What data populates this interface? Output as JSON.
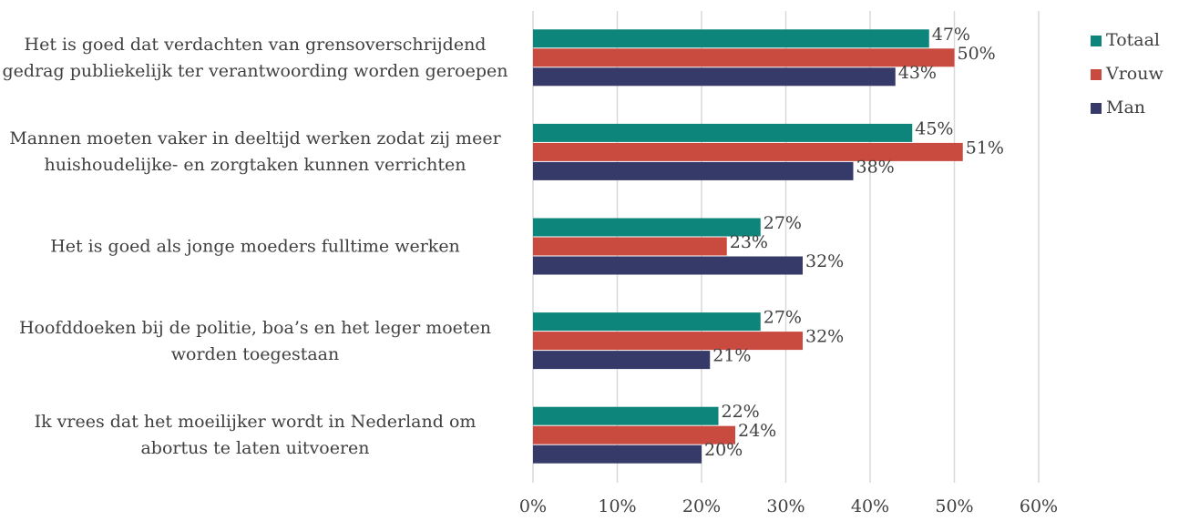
{
  "chart_data": {
    "type": "hbar",
    "categories": [
      "Het is goed dat verdachten van grensoverschrijdend gedrag publiekelijk ter verantwoording worden geroepen",
      "Mannen moeten vaker in deeltijd werken zodat zij meer huishoudelijke- en zorgtaken kunnen verrichten",
      "Het is goed als jonge moeders fulltime werken",
      "Hoofddoeken bij de politie, boa’s en het leger moeten worden toegestaan",
      "Ik vrees dat het moeilijker wordt in Nederland om abortus te laten uitvoeren"
    ],
    "series": [
      {
        "name": "Totaal",
        "color": "#0e857b",
        "values": [
          47,
          45,
          27,
          27,
          22
        ],
        "value_labels": [
          "47%",
          "45%",
          "27%",
          "27%",
          "22%"
        ]
      },
      {
        "name": "Vrouw",
        "color": "#c94b40",
        "values": [
          50,
          51,
          23,
          32,
          24
        ],
        "value_labels": [
          "50%",
          "51%",
          "23%",
          "32%",
          "24%"
        ]
      },
      {
        "name": "Man",
        "color": "#363a69",
        "values": [
          43,
          38,
          32,
          21,
          20
        ],
        "value_labels": [
          "43%",
          "38%",
          "32%",
          "21%",
          "20%"
        ]
      }
    ],
    "xlim": [
      0,
      60
    ],
    "xticks": [
      {
        "value": 0,
        "label": "0%"
      },
      {
        "value": 10,
        "label": "10%"
      },
      {
        "value": 20,
        "label": "20%"
      },
      {
        "value": 30,
        "label": "30%"
      },
      {
        "value": 40,
        "label": "40%"
      },
      {
        "value": 50,
        "label": "50%"
      },
      {
        "value": 60,
        "label": "60%"
      }
    ],
    "grid": true,
    "legend": "right"
  }
}
